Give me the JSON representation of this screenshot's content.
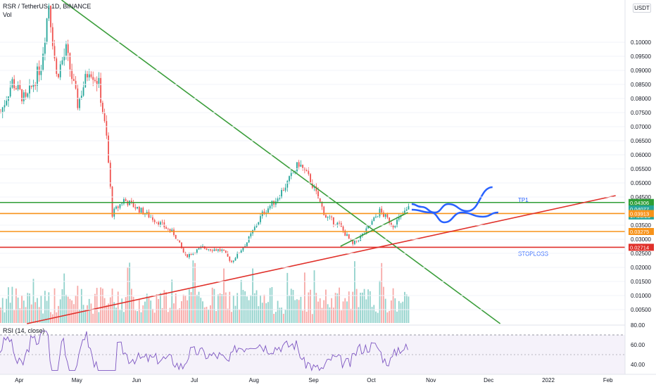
{
  "header": {
    "symbol": "RSR / TetherUS, 1D, BINANCE",
    "volume_label": "Vol",
    "rsi_label": "RSI (14, close)",
    "currency_button": "USDT"
  },
  "chart_data": {
    "type": "candlestick",
    "title": "RSR / TetherUS, 1D, BINANCE",
    "ylim": [
      0.0,
      0.115
    ],
    "y_ticks": [
      "0.10000",
      "0.09500",
      "0.09000",
      "0.08500",
      "0.08000",
      "0.07500",
      "0.07000",
      "0.06500",
      "0.06000",
      "0.05500",
      "0.05000",
      "0.04500",
      "0.03500",
      "0.03000",
      "0.02500",
      "0.02000",
      "0.01500",
      "0.01000",
      "0.00500"
    ],
    "x_ticks": [
      "Apr",
      "May",
      "Jun",
      "Jul",
      "Aug",
      "Sep",
      "Oct",
      "Nov",
      "Dec",
      "2022",
      "Feb"
    ],
    "price_trend": [
      {
        "date": "2021-03-22",
        "close": 0.075
      },
      {
        "date": "2021-03-28",
        "close": 0.086
      },
      {
        "date": "2021-04-04",
        "close": 0.079
      },
      {
        "date": "2021-04-12",
        "close": 0.092
      },
      {
        "date": "2021-04-16",
        "close": 0.114
      },
      {
        "date": "2021-04-20",
        "close": 0.088
      },
      {
        "date": "2021-04-25",
        "close": 0.097
      },
      {
        "date": "2021-05-01",
        "close": 0.078
      },
      {
        "date": "2021-05-07",
        "close": 0.091
      },
      {
        "date": "2021-05-12",
        "close": 0.085
      },
      {
        "date": "2021-05-16",
        "close": 0.066
      },
      {
        "date": "2021-05-19",
        "close": 0.039
      },
      {
        "date": "2021-05-25",
        "close": 0.044
      },
      {
        "date": "2021-06-01",
        "close": 0.041
      },
      {
        "date": "2021-06-10",
        "close": 0.037
      },
      {
        "date": "2021-06-20",
        "close": 0.032
      },
      {
        "date": "2021-06-26",
        "close": 0.024
      },
      {
        "date": "2021-07-05",
        "close": 0.027
      },
      {
        "date": "2021-07-15",
        "close": 0.026
      },
      {
        "date": "2021-07-20",
        "close": 0.022
      },
      {
        "date": "2021-07-28",
        "close": 0.029
      },
      {
        "date": "2021-08-05",
        "close": 0.039
      },
      {
        "date": "2021-08-12",
        "close": 0.044
      },
      {
        "date": "2021-08-18",
        "close": 0.05
      },
      {
        "date": "2021-08-24",
        "close": 0.057
      },
      {
        "date": "2021-08-30",
        "close": 0.051
      },
      {
        "date": "2021-09-07",
        "close": 0.038
      },
      {
        "date": "2021-09-14",
        "close": 0.035
      },
      {
        "date": "2021-09-21",
        "close": 0.028
      },
      {
        "date": "2021-09-28",
        "close": 0.033
      },
      {
        "date": "2021-10-05",
        "close": 0.04
      },
      {
        "date": "2021-10-12",
        "close": 0.035
      },
      {
        "date": "2021-10-20",
        "close": 0.041
      }
    ],
    "rsi": {
      "ylim": [
        30,
        80
      ],
      "ticks": [
        "80.00",
        "60.00",
        "40.00"
      ],
      "bands": [
        70,
        30
      ]
    },
    "price_labels": [
      {
        "value": 0.04306,
        "text": "0.04306",
        "color": "#2e9e36"
      },
      {
        "value": 0.04077,
        "text": "0.04077",
        "color": "#ffffff"
      },
      {
        "value": 0.04077,
        "text": "17:23:29",
        "color": "#ffffff"
      },
      {
        "value": 0.03913,
        "text": "0.03913",
        "color": "#f7931a"
      },
      {
        "value": 0.03275,
        "text": "0.03275",
        "color": "#f7931a"
      },
      {
        "value": 0.02714,
        "text": "0.02714",
        "color": "#e0302a"
      }
    ],
    "horizontal_levels": [
      {
        "value": 0.04306,
        "color": "#2e9e36",
        "label": "TP1"
      },
      {
        "value": 0.03913,
        "color": "#f7931a"
      },
      {
        "value": 0.03275,
        "color": "#f7931a"
      },
      {
        "value": 0.02714,
        "color": "#e0302a",
        "label": "STOPLOSS"
      }
    ],
    "trendlines": [
      {
        "color": "#3c9e3c",
        "from": {
          "date": "2021-04-23",
          "value": 0.115
        },
        "to": {
          "date": "2021-12-07",
          "value": 0.0
        }
      },
      {
        "color": "#e0302a",
        "from": {
          "date": "2021-04-05",
          "value": 0.0
        },
        "to": {
          "date": "2022-02-05",
          "value": 0.0455
        }
      },
      {
        "color": "#3c9e3c",
        "from": {
          "date": "2021-09-15",
          "value": 0.0275
        },
        "to": {
          "date": "2021-10-20",
          "value": 0.0395
        }
      }
    ],
    "annotations": [
      "TP1",
      "STOPLOSS"
    ],
    "colors": {
      "up": "#26a69a",
      "down": "#ef5350",
      "wick": "#131722",
      "grid": "#f0f3fa",
      "projection": "#2962ff",
      "rsi": "#7e57c2"
    },
    "grid": true
  }
}
